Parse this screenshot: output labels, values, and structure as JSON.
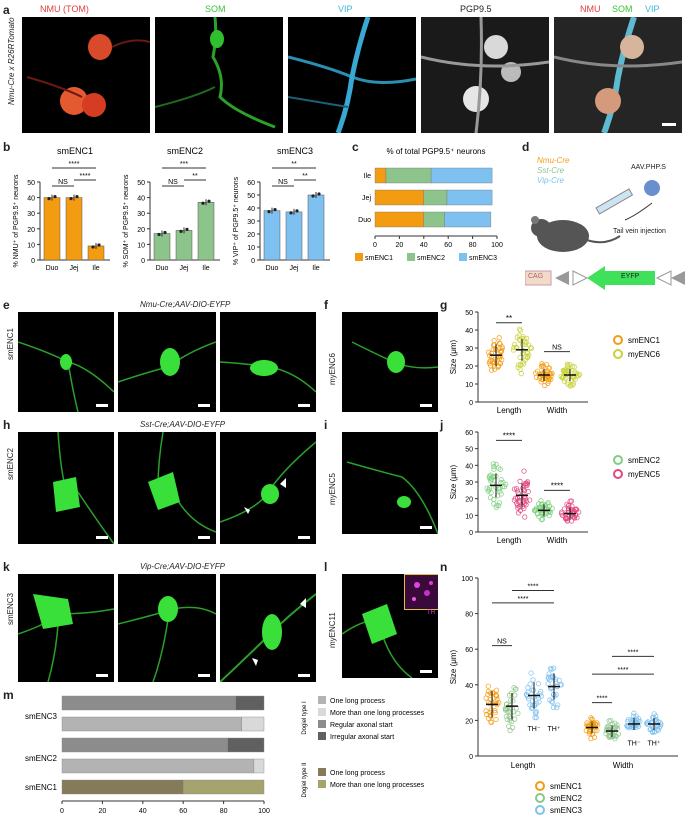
{
  "panel_a": {
    "label": "a",
    "row_label": "Nmu-Cre x R26RTomato",
    "channels": [
      {
        "label": "NMU (TOM)",
        "color": "#e0403a"
      },
      {
        "label": "SOM",
        "color": "#36c436"
      },
      {
        "label": "VIP",
        "color": "#3cb7d8"
      },
      {
        "label": "PGP9.5",
        "color": "#ffffff"
      }
    ],
    "merge_labels": [
      {
        "label": "NMU",
        "color": "#e0403a"
      },
      {
        "label": "SOM",
        "color": "#36c436"
      },
      {
        "label": "VIP",
        "color": "#3cb7d8"
      }
    ]
  },
  "panel_b": {
    "label": "b",
    "charts": [
      {
        "title": "smENC1",
        "ylabel": "% NMU⁺ of PGP9.5⁺ neurons",
        "color": "#f39c12",
        "categories": [
          "Duo",
          "Jej",
          "Ile"
        ],
        "values": [
          40,
          40,
          9
        ],
        "ylim": [
          0,
          50
        ],
        "ticks": [
          0,
          10,
          20,
          30,
          40,
          50
        ],
        "sig": [
          {
            "a": 0,
            "b": 1,
            "t": "NS"
          },
          {
            "a": 1,
            "b": 2,
            "t": "****"
          },
          {
            "a": 0,
            "b": 2,
            "t": "****"
          }
        ]
      },
      {
        "title": "smENC2",
        "ylabel": "% SOM⁺ of PGP9.5⁺ neurons",
        "color": "#8dc48b",
        "categories": [
          "Duo",
          "Jej",
          "Ile"
        ],
        "values": [
          17,
          19,
          37
        ],
        "ylim": [
          0,
          50
        ],
        "ticks": [
          0,
          10,
          20,
          30,
          40,
          50
        ],
        "sig": [
          {
            "a": 0,
            "b": 1,
            "t": "NS"
          },
          {
            "a": 1,
            "b": 2,
            "t": "**"
          },
          {
            "a": 0,
            "b": 2,
            "t": "***"
          }
        ]
      },
      {
        "title": "smENC3",
        "ylabel": "% VIP⁺ of PGP9.5⁺ neurons",
        "color": "#7ec0f0",
        "categories": [
          "Duo",
          "Jej",
          "Ile"
        ],
        "values": [
          38,
          37,
          50
        ],
        "ylim": [
          0,
          60
        ],
        "ticks": [
          0,
          10,
          20,
          30,
          40,
          50,
          60
        ],
        "sig": [
          {
            "a": 0,
            "b": 1,
            "t": "NS"
          },
          {
            "a": 1,
            "b": 2,
            "t": "**"
          },
          {
            "a": 0,
            "b": 2,
            "t": "**"
          }
        ]
      }
    ]
  },
  "chart_data": [
    {
      "type": "bar",
      "title": "smENC1",
      "ylabel": "% NMU⁺ of PGP9.5⁺ neurons",
      "categories": [
        "Duo",
        "Jej",
        "Ile"
      ],
      "values": [
        40,
        40,
        9
      ],
      "ylim": [
        0,
        50
      ]
    },
    {
      "type": "bar",
      "title": "smENC2",
      "ylabel": "% SOM⁺ of PGP9.5⁺ neurons",
      "categories": [
        "Duo",
        "Jej",
        "Ile"
      ],
      "values": [
        17,
        19,
        37
      ],
      "ylim": [
        0,
        50
      ]
    },
    {
      "type": "bar",
      "title": "smENC3",
      "ylabel": "% VIP⁺ of PGP9.5⁺ neurons",
      "categories": [
        "Duo",
        "Jej",
        "Ile"
      ],
      "values": [
        38,
        37,
        50
      ],
      "ylim": [
        0,
        60
      ]
    },
    {
      "type": "bar",
      "title": "% of total PGP9.5⁺ neurons",
      "categories": [
        "Ile",
        "Jej",
        "Duo"
      ],
      "series": [
        {
          "name": "smENC1",
          "values": [
            9,
            40,
            40
          ]
        },
        {
          "name": "smENC2",
          "values": [
            37,
            19,
            17
          ]
        },
        {
          "name": "smENC3",
          "values": [
            50,
            37,
            38
          ]
        }
      ],
      "xlim": [
        0,
        100
      ]
    },
    {
      "type": "scatter",
      "categories": [
        "Length",
        "Width"
      ],
      "series": [
        {
          "name": "smENC1",
          "values": [
            26,
            15
          ]
        },
        {
          "name": "myENC6",
          "values": [
            29,
            15
          ]
        }
      ],
      "ylabel": "Size (μm)",
      "ylim": [
        0,
        50
      ]
    },
    {
      "type": "scatter",
      "categories": [
        "Length",
        "Width"
      ],
      "series": [
        {
          "name": "smENC2",
          "values": [
            28,
            13
          ]
        },
        {
          "name": "myENC5",
          "values": [
            22,
            11
          ]
        }
      ],
      "ylabel": "Size (μm)",
      "ylim": [
        0,
        60
      ]
    },
    {
      "type": "scatter",
      "categories": [
        "Length",
        "Width"
      ],
      "series": [
        {
          "name": "smENC1",
          "values": [
            29,
            16
          ]
        },
        {
          "name": "smENC2",
          "values": [
            28,
            14
          ]
        },
        {
          "name": "smENC3 TH⁻",
          "values": [
            34,
            18
          ]
        },
        {
          "name": "smENC3 TH⁺",
          "values": [
            39,
            18
          ]
        }
      ],
      "ylabel": "Size (μm)",
      "ylim": [
        0,
        100
      ]
    },
    {
      "type": "bar",
      "categories": [
        "smENC3",
        "smENC3",
        "smENC2",
        "smENC2",
        "smENC1"
      ],
      "series": [
        {
          "name": "stack",
          "values": [
            [
              86,
              14
            ],
            [
              89,
              11
            ],
            [
              82,
              18
            ],
            [
              95,
              5
            ],
            [
              60,
              40
            ]
          ]
        }
      ],
      "xlim": [
        0,
        100
      ]
    }
  ],
  "panel_c": {
    "label": "c",
    "title": "% of total PGP9.5⁺ neurons",
    "rows": [
      "Ile",
      "Jej",
      "Duo"
    ],
    "segments": [
      [
        9,
        37,
        50
      ],
      [
        40,
        19,
        37
      ],
      [
        40,
        17,
        38
      ]
    ],
    "colors": [
      "#f39c12",
      "#8dc48b",
      "#7ec0f0"
    ],
    "legend": [
      "smENC1",
      "smENC2",
      "smENC3"
    ],
    "ticks": [
      0,
      20,
      40,
      60,
      80,
      100
    ]
  },
  "panel_d": {
    "label": "d",
    "cre": [
      {
        "t": "Nmu-Cre",
        "c": "#f39c12"
      },
      {
        "t": "Sst-Cre",
        "c": "#8dc48b"
      },
      {
        "t": "Vip-Cre",
        "c": "#7ec0f0"
      }
    ],
    "virus": "AAV.PHP.S",
    "injection": "Tail vein injection",
    "promoter": "CAG",
    "gene": "EYFP"
  },
  "panel_e": {
    "label": "e",
    "caption": "Nmu-Cre;AAV-DIO-EYFP",
    "row_label": "smENC1"
  },
  "panel_f": {
    "label": "f",
    "row_label": "myENC6"
  },
  "panel_g": {
    "label": "g",
    "ylabel": "Size (μm)",
    "ticks": [
      0,
      10,
      20,
      30,
      40,
      50
    ],
    "groups": [
      "Length",
      "Width"
    ],
    "legend": [
      {
        "t": "smENC1",
        "c": "#f39c12"
      },
      {
        "t": "myENC6",
        "c": "#c9d13a"
      }
    ],
    "sig": [
      "**",
      "NS"
    ]
  },
  "panel_h": {
    "label": "h",
    "caption": "Sst-Cre;AAV-DIO-EYFP",
    "row_label": "smENC2"
  },
  "panel_i": {
    "label": "i",
    "row_label": "myENC5"
  },
  "panel_j": {
    "label": "j",
    "ylabel": "Size (μm)",
    "ticks": [
      0,
      10,
      20,
      30,
      40,
      50,
      60
    ],
    "groups": [
      "Length",
      "Width"
    ],
    "legend": [
      {
        "t": "smENC2",
        "c": "#7fcf7f"
      },
      {
        "t": "myENC5",
        "c": "#e2477f"
      }
    ],
    "sig": [
      "****",
      "****"
    ]
  },
  "panel_k": {
    "label": "k",
    "caption": "Vip-Cre;AAV-DIO-EYFP",
    "row_label": "smENC3"
  },
  "panel_l": {
    "label": "l",
    "row_label": "myENC11",
    "inset": "TH"
  },
  "panel_n": {
    "label": "n",
    "ylabel": "Size (μm)",
    "ticks": [
      0,
      20,
      40,
      60,
      80,
      100
    ],
    "groups": [
      "Length",
      "Width"
    ],
    "th": [
      "TH⁻",
      "TH⁺"
    ],
    "legend": [
      {
        "t": "smENC1",
        "c": "#f39c12"
      },
      {
        "t": "smENC2",
        "c": "#8dc48b"
      },
      {
        "t": "smENC3",
        "c": "#7ec0f0"
      }
    ],
    "sig": [
      "NS",
      "****",
      "****",
      "****",
      "****",
      "****"
    ]
  },
  "panel_m": {
    "label": "m",
    "rows": [
      "smENC3",
      "smENC2",
      "smENC1"
    ],
    "ticks": [
      0,
      20,
      40,
      60,
      80,
      100
    ],
    "group1": "Dogiel type I",
    "group2": "Dogiel type II",
    "legend1": [
      {
        "t": "One long process",
        "c": "#b3b3b3"
      },
      {
        "t": "More than one long processes",
        "c": "#d9d9d9"
      },
      {
        "t": "Regular axonal start",
        "c": "#8c8c8c"
      },
      {
        "t": "Irregular axonal start",
        "c": "#606060"
      }
    ],
    "legend2": [
      {
        "t": "One long process",
        "c": "#857a5a"
      },
      {
        "t": "More than one long processes",
        "c": "#a5a46e"
      }
    ]
  }
}
